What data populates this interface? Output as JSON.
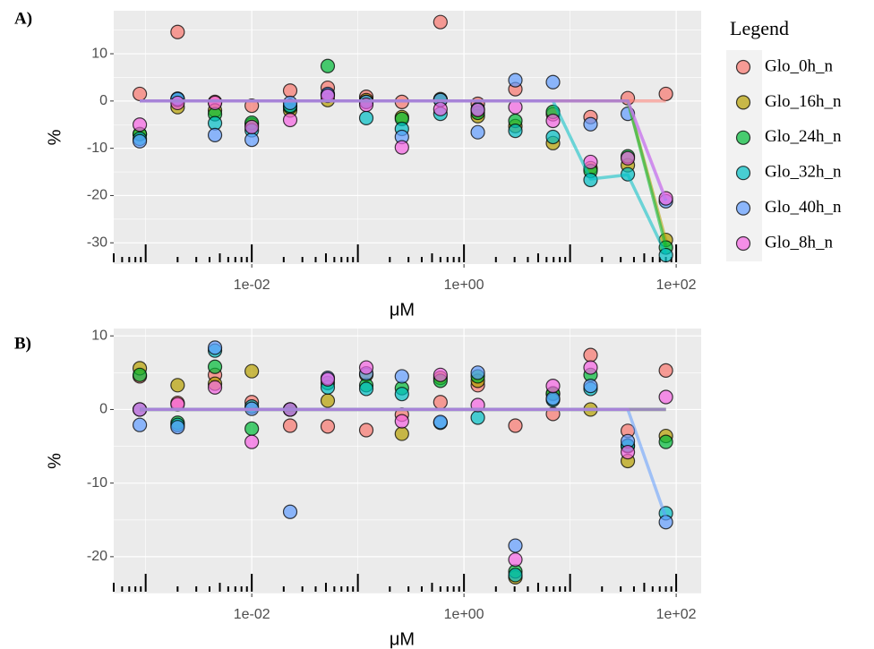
{
  "chart_data": [
    {
      "type": "scatter",
      "label": "A)",
      "ylabel": "%",
      "xlabel": "μM",
      "legend_title": "Legend",
      "legend": "right",
      "log_x": true,
      "grid": true,
      "xlim": [
        0.0005,
        172
      ],
      "ylim": [
        -34.5,
        19.1
      ],
      "xticks": [
        {
          "value": 0.01,
          "label": "1e-02"
        },
        {
          "value": 1,
          "label": "1e+00"
        },
        {
          "value": 100,
          "label": "1e+02"
        }
      ],
      "yticks": [
        10,
        0,
        -10,
        -20,
        -30
      ],
      "x": [
        0.00088,
        0.002,
        0.0045,
        0.01,
        0.023,
        0.052,
        0.12,
        0.26,
        0.6,
        1.35,
        3.05,
        6.9,
        15.6,
        35,
        80
      ],
      "series": [
        {
          "name": "Glo_0h_n",
          "color": "#F8766D",
          "values": [
            1.5,
            14.6,
            -0.2,
            -1,
            2.2,
            2.8,
            0.9,
            -0.2,
            16.7,
            -0.6,
            2.5,
            -2.8,
            -3.4,
            0.6,
            1.5
          ],
          "fit": [
            0,
            0,
            0,
            0,
            0,
            0,
            0,
            0,
            0,
            0,
            0,
            0,
            0,
            0,
            0
          ]
        },
        {
          "name": "Glo_16h_n",
          "color": "#B79F00",
          "values": [
            -7,
            -1.3,
            -2,
            -5,
            -2,
            0.2,
            0.2,
            -3.4,
            0.4,
            -3.2,
            -5.3,
            -8.9,
            -14.2,
            -13.6,
            -29.4
          ],
          "fit": [
            0,
            0,
            0,
            0,
            0,
            0,
            0,
            0,
            0,
            0,
            0,
            0,
            0,
            0,
            -29.5
          ]
        },
        {
          "name": "Glo_24h_n",
          "color": "#00BA38",
          "values": [
            -7,
            0.2,
            -2.8,
            -4.6,
            -1.3,
            7.4,
            -0.2,
            -3.8,
            0.2,
            -2.5,
            -4.2,
            -2.3,
            -14.8,
            -11.7,
            -31
          ],
          "fit": [
            0,
            0,
            0,
            0,
            0,
            0,
            0,
            0,
            0,
            0,
            0,
            0,
            0,
            0,
            -30.8
          ]
        },
        {
          "name": "Glo_32h_n",
          "color": "#00BFC4",
          "values": [
            -8,
            0.5,
            -4.7,
            -6.2,
            -1,
            1.3,
            -3.6,
            -5.9,
            -2.7,
            -1.7,
            -6.3,
            -7.6,
            -16.7,
            -15.5,
            -32.6
          ],
          "fit": [
            0,
            0,
            0,
            0,
            0,
            0,
            0,
            0,
            0,
            0,
            0,
            0,
            -16.5,
            -15.6,
            -32.4
          ]
        },
        {
          "name": "Glo_40h_n",
          "color": "#619CFF",
          "values": [
            -8.5,
            0.4,
            -7.2,
            -8.2,
            -0.4,
            1.5,
            -0.2,
            -7.6,
            0.2,
            -6.6,
            4.4,
            4,
            -4.9,
            -2.7,
            -21.2
          ],
          "fit": [
            0,
            0,
            0,
            0,
            0,
            0,
            0,
            0,
            0,
            0,
            0,
            0,
            0,
            0,
            -21
          ]
        },
        {
          "name": "Glo_8h_n",
          "color": "#F564E3",
          "values": [
            -5,
            -0.4,
            -0.4,
            -5.5,
            -4,
            1.1,
            -0.8,
            -9.8,
            -1.7,
            -1.9,
            -1.3,
            -4.2,
            -12.9,
            -12.1,
            -20.6
          ],
          "fit": [
            0,
            0,
            0,
            0,
            0,
            0,
            0,
            0,
            0,
            0,
            0,
            0,
            0,
            0,
            -20.8
          ]
        }
      ]
    },
    {
      "type": "scatter",
      "label": "B)",
      "ylabel": "%",
      "xlabel": "μM",
      "log_x": true,
      "grid": true,
      "xlim": [
        0.0005,
        172
      ],
      "ylim": [
        -25,
        11
      ],
      "xticks": [
        {
          "value": 0.01,
          "label": "1e-02"
        },
        {
          "value": 1,
          "label": "1e+00"
        },
        {
          "value": 100,
          "label": "1e+02"
        }
      ],
      "yticks": [
        10,
        0,
        -10,
        -20
      ],
      "x": [
        0.00088,
        0.002,
        0.0045,
        0.01,
        0.023,
        0.052,
        0.12,
        0.26,
        0.6,
        1.35,
        3.05,
        6.9,
        15.6,
        35,
        80
      ],
      "series": [
        {
          "name": "Glo_0h_n",
          "color": "#F8766D",
          "values": [
            4.5,
            0.9,
            4.7,
            1,
            -2.2,
            -2.3,
            -2.8,
            -0.7,
            1,
            3.3,
            -2.2,
            -0.6,
            7.4,
            -2.9,
            5.3
          ],
          "fit": [
            0,
            0,
            0,
            0,
            0,
            0,
            0,
            0,
            0,
            0,
            0,
            0,
            0,
            0,
            0
          ]
        },
        {
          "name": "Glo_16h_n",
          "color": "#B79F00",
          "values": [
            5.6,
            3.3,
            3.5,
            5.2,
            0,
            1.2,
            4.7,
            -3.3,
            4.3,
            3.9,
            -22.8,
            2.1,
            0,
            -7,
            -3.6
          ],
          "fit": [
            0,
            0,
            0,
            0,
            0,
            0,
            0,
            0,
            0,
            0,
            0,
            0,
            0,
            0,
            0
          ]
        },
        {
          "name": "Glo_24h_n",
          "color": "#00BA38",
          "values": [
            4.7,
            -1.8,
            5.8,
            -2.6,
            0,
            3.6,
            3.3,
            2.9,
            3.9,
            4.5,
            -22,
            2.2,
            4.7,
            -5,
            -4.4
          ],
          "fit": [
            0,
            0,
            0,
            0,
            0,
            0,
            0,
            0,
            0,
            0,
            0,
            0,
            0,
            0,
            0
          ]
        },
        {
          "name": "Glo_32h_n",
          "color": "#00BFC4",
          "values": [
            0,
            -2.1,
            8,
            0.4,
            0,
            3,
            2.8,
            2.1,
            -1.8,
            -1.1,
            -22.5,
            1.3,
            2.8,
            -4.9,
            -14.1
          ],
          "fit": [
            0,
            0,
            0,
            0,
            0,
            0,
            0,
            0,
            0,
            0,
            0,
            0,
            0,
            0,
            0
          ]
        },
        {
          "name": "Glo_40h_n",
          "color": "#619CFF",
          "values": [
            -2.1,
            -2.4,
            8.4,
            0.1,
            -13.9,
            4.3,
            4.9,
            4.5,
            -1.7,
            5,
            -18.5,
            1.5,
            3.2,
            -4.3,
            -15.3
          ],
          "fit": [
            0,
            0,
            0,
            0,
            0,
            0,
            0,
            0,
            0,
            0,
            0,
            0,
            0,
            0,
            -14.7
          ]
        },
        {
          "name": "Glo_8h_n",
          "color": "#F564E3",
          "values": [
            0,
            0.7,
            3,
            -4.4,
            0,
            4.1,
            5.7,
            -1.6,
            4.7,
            0.6,
            -20.4,
            3.2,
            5.7,
            -5.8,
            1.7
          ],
          "fit": [
            0,
            0,
            0,
            0,
            0,
            0,
            0,
            0,
            0,
            0,
            0,
            0,
            0,
            0,
            0
          ]
        }
      ]
    }
  ]
}
